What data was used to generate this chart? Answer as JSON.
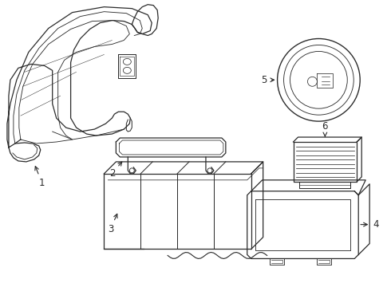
{
  "bg_color": "#ffffff",
  "line_color": "#2b2b2b",
  "line_width": 0.9,
  "label_fontsize": 8.5,
  "fig_width": 4.9,
  "fig_height": 3.6,
  "dpi": 100
}
